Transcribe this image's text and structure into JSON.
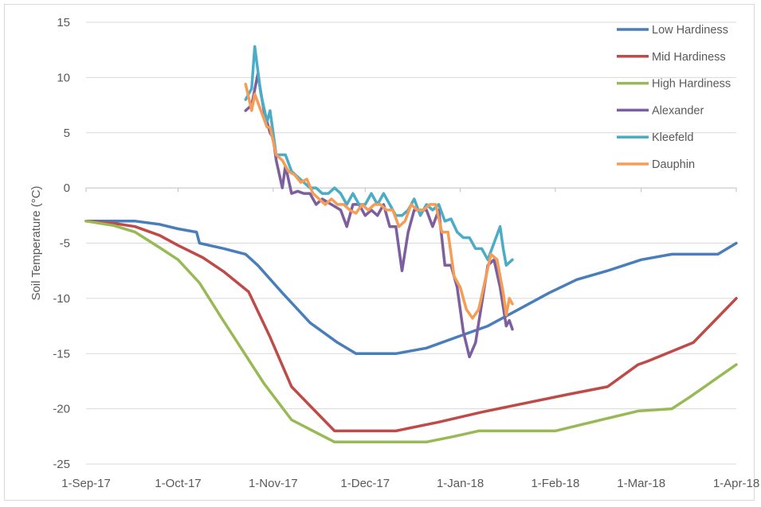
{
  "chart_data": {
    "type": "line",
    "title": "",
    "xlabel": "",
    "ylabel": "Soil Temperature (°C)",
    "ylim": [
      -25,
      15
    ],
    "yticks": [
      15,
      10,
      5,
      0,
      -5,
      -10,
      -15,
      -20,
      -25
    ],
    "xticks": [
      "1-Sep-17",
      "1-Oct-17",
      "1-Nov-17",
      "1-Dec-17",
      "1-Jan-18",
      "1-Feb-18",
      "1-Mar-18",
      "1-Apr-18"
    ],
    "xlim": [
      "2017-09-01",
      "2018-04-01"
    ],
    "grid": "horizontal",
    "legend_position": "top-right",
    "series": [
      {
        "name": "Low Hardiness",
        "color": "#4a7ebb",
        "points": [
          [
            "2017-09-01",
            -3
          ],
          [
            "2017-09-17",
            -3
          ],
          [
            "2017-09-25",
            -3.3
          ],
          [
            "2017-10-01",
            -3.7
          ],
          [
            "2017-10-07",
            -4
          ],
          [
            "2017-10-08",
            -5
          ],
          [
            "2017-10-16",
            -5.5
          ],
          [
            "2017-10-23",
            -6
          ],
          [
            "2017-10-27",
            -7
          ],
          [
            "2017-11-04",
            -9.5
          ],
          [
            "2017-11-13",
            -12.2
          ],
          [
            "2017-11-22",
            -14
          ],
          [
            "2017-11-28",
            -15
          ],
          [
            "2017-12-11",
            -15
          ],
          [
            "2017-12-21",
            -14.5
          ],
          [
            "2017-12-31",
            -13.5
          ],
          [
            "2018-01-10",
            -12.5
          ],
          [
            "2018-01-20",
            -11
          ],
          [
            "2018-01-30",
            -9.5
          ],
          [
            "2018-02-08",
            -8.3
          ],
          [
            "2018-02-18",
            -7.5
          ],
          [
            "2018-03-01",
            -6.5
          ],
          [
            "2018-03-11",
            -6
          ],
          [
            "2018-03-26",
            -6
          ],
          [
            "2018-04-01",
            -5
          ]
        ]
      },
      {
        "name": "Mid Hardiness",
        "color": "#be4b48",
        "points": [
          [
            "2017-09-01",
            -3
          ],
          [
            "2017-09-10",
            -3.2
          ],
          [
            "2017-09-17",
            -3.5
          ],
          [
            "2017-09-25",
            -4.3
          ],
          [
            "2017-10-01",
            -5.2
          ],
          [
            "2017-10-09",
            -6.3
          ],
          [
            "2017-10-16",
            -7.6
          ],
          [
            "2017-10-24",
            -9.4
          ],
          [
            "2017-10-31",
            -13.5
          ],
          [
            "2017-11-07",
            -18
          ],
          [
            "2017-11-14",
            -20
          ],
          [
            "2017-11-21",
            -22
          ],
          [
            "2017-12-11",
            -22
          ],
          [
            "2017-12-25",
            -21.2
          ],
          [
            "2018-01-08",
            -20.3
          ],
          [
            "2018-01-22",
            -19.5
          ],
          [
            "2018-02-05",
            -18.7
          ],
          [
            "2018-02-18",
            -18
          ],
          [
            "2018-02-28",
            -16
          ],
          [
            "2018-03-03",
            -15.7
          ],
          [
            "2018-03-18",
            -14
          ],
          [
            "2018-04-01",
            -10
          ]
        ]
      },
      {
        "name": "High Hardiness",
        "color": "#98b954",
        "points": [
          [
            "2017-09-01",
            -3
          ],
          [
            "2017-09-10",
            -3.4
          ],
          [
            "2017-09-17",
            -4
          ],
          [
            "2017-09-25",
            -5.4
          ],
          [
            "2017-10-01",
            -6.5
          ],
          [
            "2017-10-08",
            -8.6
          ],
          [
            "2017-10-15",
            -11.7
          ],
          [
            "2017-10-22",
            -14.7
          ],
          [
            "2017-10-29",
            -17.7
          ],
          [
            "2017-11-07",
            -21
          ],
          [
            "2017-11-14",
            -22
          ],
          [
            "2017-11-21",
            -23
          ],
          [
            "2017-12-21",
            -23
          ],
          [
            "2017-12-30",
            -22.5
          ],
          [
            "2018-01-07",
            -22
          ],
          [
            "2018-02-01",
            -22
          ],
          [
            "2018-02-07",
            -21.6
          ],
          [
            "2018-02-28",
            -20.2
          ],
          [
            "2018-03-11",
            -20
          ],
          [
            "2018-03-17",
            -18.9
          ],
          [
            "2018-04-01",
            -16
          ]
        ]
      },
      {
        "name": "Alexander",
        "color": "#7d5fa0",
        "points": [
          [
            "2017-10-23",
            7
          ],
          [
            "2017-10-25",
            7.5
          ],
          [
            "2017-10-27",
            10.3
          ],
          [
            "2017-10-29",
            7
          ],
          [
            "2017-10-31",
            5
          ],
          [
            "2017-11-01",
            4.5
          ],
          [
            "2017-11-02",
            2.5
          ],
          [
            "2017-11-04",
            0
          ],
          [
            "2017-11-05",
            2
          ],
          [
            "2017-11-07",
            -0.5
          ],
          [
            "2017-11-09",
            -0.3
          ],
          [
            "2017-11-11",
            -0.5
          ],
          [
            "2017-11-13",
            -0.5
          ],
          [
            "2017-11-15",
            -1.5
          ],
          [
            "2017-11-17",
            -1
          ],
          [
            "2017-11-20",
            -1.5
          ],
          [
            "2017-11-23",
            -2
          ],
          [
            "2017-11-25",
            -3.5
          ],
          [
            "2017-11-27",
            -1.5
          ],
          [
            "2017-11-29",
            -1.5
          ],
          [
            "2017-12-01",
            -2.5
          ],
          [
            "2017-12-03",
            -2
          ],
          [
            "2017-12-05",
            -2.5
          ],
          [
            "2017-12-07",
            -1.5
          ],
          [
            "2017-12-09",
            -3.5
          ],
          [
            "2017-12-11",
            -3.5
          ],
          [
            "2017-12-13",
            -7.5
          ],
          [
            "2017-12-15",
            -4
          ],
          [
            "2017-12-17",
            -2
          ],
          [
            "2017-12-19",
            -2
          ],
          [
            "2017-12-21",
            -2
          ],
          [
            "2017-12-23",
            -3.5
          ],
          [
            "2017-12-25",
            -2
          ],
          [
            "2017-12-27",
            -7
          ],
          [
            "2017-12-29",
            -7
          ],
          [
            "2017-12-31",
            -9
          ],
          [
            "2018-01-02",
            -13
          ],
          [
            "2018-01-04",
            -15.3
          ],
          [
            "2018-01-06",
            -14
          ],
          [
            "2018-01-08",
            -10.5
          ],
          [
            "2018-01-10",
            -7
          ],
          [
            "2018-01-12",
            -6.5
          ],
          [
            "2018-01-14",
            -9
          ],
          [
            "2018-01-16",
            -12.5
          ],
          [
            "2018-01-17",
            -12
          ],
          [
            "2018-01-18",
            -12.8
          ]
        ]
      },
      {
        "name": "Kleefeld",
        "color": "#4bacc6",
        "points": [
          [
            "2017-10-23",
            8
          ],
          [
            "2017-10-25",
            9
          ],
          [
            "2017-10-26",
            12.8
          ],
          [
            "2017-10-28",
            8.5
          ],
          [
            "2017-10-30",
            6
          ],
          [
            "2017-10-31",
            7
          ],
          [
            "2017-11-02",
            3
          ],
          [
            "2017-11-05",
            3
          ],
          [
            "2017-11-07",
            1.5
          ],
          [
            "2017-11-09",
            1
          ],
          [
            "2017-11-11",
            0.5
          ],
          [
            "2017-11-13",
            0
          ],
          [
            "2017-11-15",
            0
          ],
          [
            "2017-11-17",
            -0.5
          ],
          [
            "2017-11-19",
            -0.5
          ],
          [
            "2017-11-21",
            0
          ],
          [
            "2017-11-23",
            -0.5
          ],
          [
            "2017-11-25",
            -1.5
          ],
          [
            "2017-11-27",
            -0.5
          ],
          [
            "2017-11-29",
            -1.5
          ],
          [
            "2017-12-01",
            -1.5
          ],
          [
            "2017-12-03",
            -0.5
          ],
          [
            "2017-12-05",
            -1.5
          ],
          [
            "2017-12-07",
            -0.5
          ],
          [
            "2017-12-09",
            -1.5
          ],
          [
            "2017-12-11",
            -2.5
          ],
          [
            "2017-12-13",
            -2.5
          ],
          [
            "2017-12-15",
            -2
          ],
          [
            "2017-12-17",
            -1
          ],
          [
            "2017-12-19",
            -2.5
          ],
          [
            "2017-12-21",
            -1.5
          ],
          [
            "2017-12-23",
            -2
          ],
          [
            "2017-12-25",
            -1.5
          ],
          [
            "2017-12-27",
            -3
          ],
          [
            "2017-12-29",
            -2.8
          ],
          [
            "2017-12-31",
            -4
          ],
          [
            "2018-01-02",
            -4.5
          ],
          [
            "2018-01-04",
            -4.5
          ],
          [
            "2018-01-06",
            -5.5
          ],
          [
            "2018-01-08",
            -5.5
          ],
          [
            "2018-01-10",
            -6.5
          ],
          [
            "2018-01-12",
            -5
          ],
          [
            "2018-01-14",
            -3.5
          ],
          [
            "2018-01-15",
            -5.5
          ],
          [
            "2018-01-16",
            -7
          ],
          [
            "2018-01-18",
            -6.5
          ]
        ]
      },
      {
        "name": "Dauphin",
        "color": "#f59d56",
        "points": [
          [
            "2017-10-23",
            9.4
          ],
          [
            "2017-10-25",
            7
          ],
          [
            "2017-10-26",
            8.5
          ],
          [
            "2017-10-28",
            7
          ],
          [
            "2017-10-30",
            5.5
          ],
          [
            "2017-10-31",
            5.5
          ],
          [
            "2017-11-02",
            3
          ],
          [
            "2017-11-04",
            2.5
          ],
          [
            "2017-11-06",
            1.5
          ],
          [
            "2017-11-08",
            1.2
          ],
          [
            "2017-11-10",
            0.5
          ],
          [
            "2017-11-12",
            0.8
          ],
          [
            "2017-11-14",
            -0.5
          ],
          [
            "2017-11-16",
            -1
          ],
          [
            "2017-11-18",
            -1.5
          ],
          [
            "2017-11-20",
            -1
          ],
          [
            "2017-11-22",
            -1.5
          ],
          [
            "2017-11-24",
            -1.5
          ],
          [
            "2017-11-26",
            -2
          ],
          [
            "2017-11-28",
            -2.3
          ],
          [
            "2017-11-30",
            -1.5
          ],
          [
            "2017-12-02",
            -2
          ],
          [
            "2017-12-04",
            -1.5
          ],
          [
            "2017-12-06",
            -1.5
          ],
          [
            "2017-12-08",
            -2
          ],
          [
            "2017-12-10",
            -2
          ],
          [
            "2017-12-12",
            -3.5
          ],
          [
            "2017-12-14",
            -3
          ],
          [
            "2017-12-16",
            -1.5
          ],
          [
            "2017-12-18",
            -2
          ],
          [
            "2017-12-20",
            -2
          ],
          [
            "2017-12-22",
            -1.5
          ],
          [
            "2017-12-24",
            -1.5
          ],
          [
            "2017-12-26",
            -4
          ],
          [
            "2017-12-28",
            -4
          ],
          [
            "2017-12-30",
            -8
          ],
          [
            "2018-01-01",
            -9
          ],
          [
            "2018-01-03",
            -11
          ],
          [
            "2018-01-05",
            -11.8
          ],
          [
            "2018-01-07",
            -11
          ],
          [
            "2018-01-09",
            -8.5
          ],
          [
            "2018-01-11",
            -6
          ],
          [
            "2018-01-13",
            -6.5
          ],
          [
            "2018-01-15",
            -9.5
          ],
          [
            "2018-01-16",
            -11.5
          ],
          [
            "2018-01-17",
            -10
          ],
          [
            "2018-01-18",
            -10.5
          ]
        ]
      }
    ]
  }
}
